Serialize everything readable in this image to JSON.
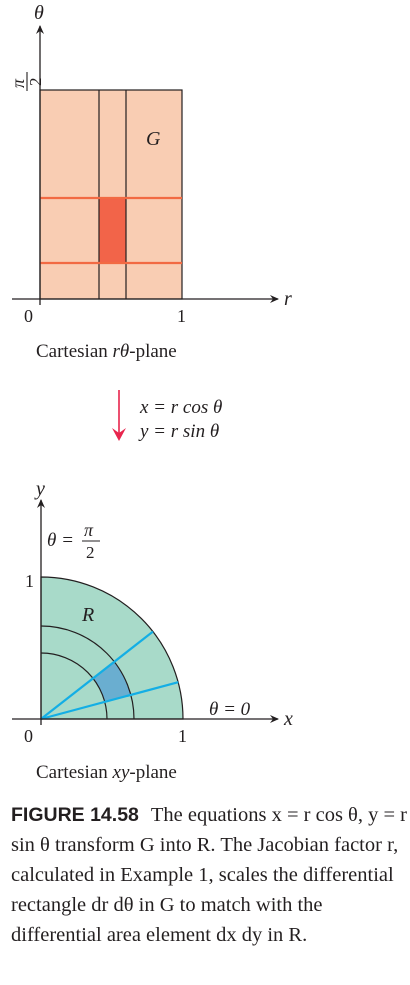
{
  "top_diagram": {
    "axis_y_label": "θ",
    "axis_x_label": "r",
    "y_tick_num": "π",
    "y_tick_den": "2",
    "origin_label": "0",
    "x_tick_label": "1",
    "region_label": "G",
    "plane_caption_pre": "Cartesian ",
    "plane_caption_var": "rθ",
    "plane_caption_post": "-plane"
  },
  "transform": {
    "line1": "x = r cos θ",
    "line2": "y = r sin θ"
  },
  "bottom_diagram": {
    "axis_y_label": "y",
    "axis_x_label": "x",
    "theta_top_lhs": "θ =",
    "theta_top_num": "π",
    "theta_top_den": "2",
    "y_tick_label": "1",
    "origin_label": "0",
    "x_tick_label": "1",
    "region_label": "R",
    "theta_zero_label": "θ = 0",
    "plane_caption_pre": "Cartesian ",
    "plane_caption_var": "xy",
    "plane_caption_post": "-plane"
  },
  "figure_caption": {
    "label": "FIGURE 14.58",
    "text": "The equations x = r cos θ, y = r sin θ transform G into R. The Jacobian factor r, calculated in Example 1, scales the differential rectangle dr dθ in G to match with the differential area element dx dy in R."
  },
  "colors": {
    "light_region_top": "#f9cdb3",
    "highlight_rect": "#f26449",
    "orange_line": "#f26a43",
    "light_region_bottom": "#a8dac9",
    "highlight_sector": "#6aaed0",
    "cyan_ray": "#13aee5",
    "arrow_pink": "#e8254d"
  }
}
